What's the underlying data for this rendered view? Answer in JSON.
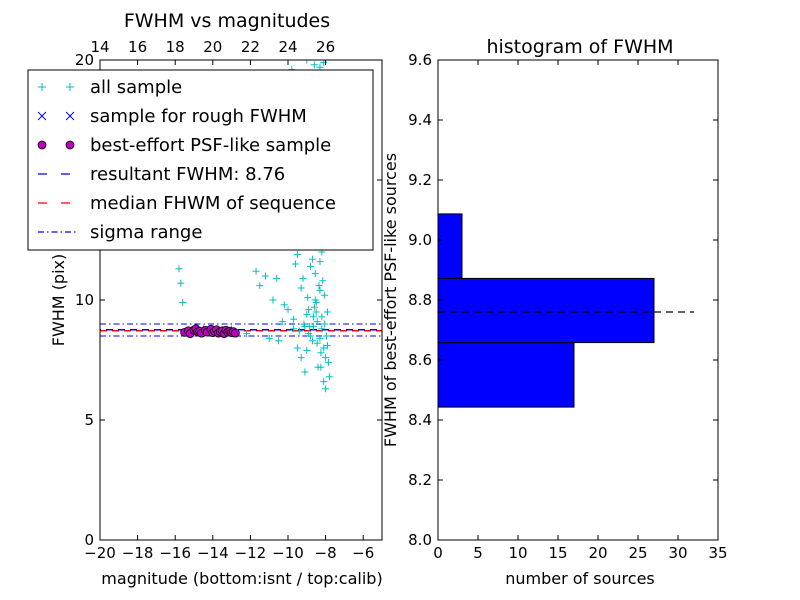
{
  "chart_data": [
    {
      "type": "scatter",
      "title": "FWHM vs magnitudes",
      "xlabel": "magnitude (bottom:isnt / top:calib)",
      "ylabel": "FWHM (pix)",
      "xlim": [
        -20,
        -5
      ],
      "ylim": [
        0,
        20
      ],
      "x_ticks": [
        -20,
        -18,
        -16,
        -14,
        -12,
        -10,
        -8,
        -6
      ],
      "x_tick_labels": [
        "−20",
        "−18",
        "−16",
        "−14",
        "−12",
        "−10",
        "−8",
        "−6"
      ],
      "y_ticks": [
        0,
        5,
        10,
        15,
        20
      ],
      "y_tick_labels": [
        "0",
        "5",
        "10",
        "15",
        "20"
      ],
      "top_x_ticks": [
        14,
        16,
        18,
        20,
        22,
        24,
        26
      ],
      "top_x_tick_labels": [
        "14",
        "16",
        "18",
        "20",
        "22",
        "24",
        "26"
      ],
      "top_x_offset": 34,
      "legend_position": "upper-left",
      "legend": [
        {
          "label": "all sample",
          "marker": "plus",
          "color": "#00bfbf"
        },
        {
          "label": "sample for rough FWHM",
          "marker": "cross",
          "color": "#0000ff"
        },
        {
          "label": "best-effort PSF-like sample",
          "marker": "circle",
          "color": "#bf00bf"
        },
        {
          "label": "resultant FWHM: 8.76",
          "line": "dashed",
          "color": "#0000ff"
        },
        {
          "label": "median FHWM of sequence",
          "line": "dashed",
          "color": "#ff0000"
        },
        {
          "label": "sigma range",
          "line": "dashdot",
          "color": "#0000ff"
        }
      ],
      "resultant_fwhm": 8.76,
      "median_fwhm": 8.72,
      "sigma_range": [
        8.5,
        9.0
      ],
      "series": [
        {
          "name": "all sample",
          "marker": "plus",
          "color": "#00bfbf",
          "x": [
            -15.8,
            -15.7,
            -15.6,
            -14.5,
            -14.2,
            -13.0,
            -12.2,
            -11.7,
            -11.5,
            -11.2,
            -10.8,
            -10.5,
            -10.3,
            -10.0,
            -9.9,
            -9.7,
            -9.5,
            -9.3,
            -9.2,
            -9.0,
            -8.9,
            -8.8,
            -8.7,
            -8.6,
            -8.5,
            -8.4,
            -8.3,
            -8.2,
            -8.1,
            -8.0,
            -7.9,
            -7.8,
            -9.6,
            -9.4,
            -9.1,
            -8.95,
            -8.85,
            -8.75,
            -8.65,
            -8.55,
            -8.45,
            -8.35,
            -8.25,
            -8.15,
            -8.05,
            -7.95,
            -7.85,
            -9.8,
            -9.0,
            -8.6,
            -8.3,
            -8.1,
            -8.4,
            -8.2,
            -8.0,
            -9.2,
            -8.8,
            -8.5,
            -8.0,
            -8.7,
            -9.5,
            -9.3,
            -9.7,
            -10.2,
            -10.6,
            -11.0,
            -9.15,
            -8.9,
            -8.2,
            -8.6,
            -8.3,
            -8.05,
            -7.9,
            -9.4,
            -9.0,
            -8.7,
            -8.5,
            -8.25,
            -8.1,
            -8.0,
            -8.45,
            -8.15,
            -8.35,
            -9.1,
            -8.8,
            -8.55,
            -8.9,
            -8.3,
            -8.65,
            -8.2
          ],
          "y": [
            11.3,
            10.7,
            9.9,
            8.8,
            8.7,
            8.8,
            8.6,
            11.2,
            10.6,
            11.0,
            10.0,
            8.3,
            9.1,
            9.6,
            12.3,
            8.8,
            8.0,
            7.6,
            10.9,
            9.4,
            12.8,
            8.5,
            11.7,
            13.5,
            9.9,
            7.2,
            10.4,
            12.0,
            8.0,
            7.6,
            9.5,
            6.8,
            11.5,
            13.8,
            7.0,
            10.1,
            8.9,
            12.6,
            9.3,
            11.1,
            8.2,
            13.0,
            7.8,
            10.8,
            9.0,
            8.5,
            7.4,
            19.6,
            20.0,
            19.8,
            19.7,
            19.9,
            14.9,
            15.2,
            14.8,
            13.4,
            14.3,
            12.2,
            12.9,
            16.0,
            11.9,
            10.5,
            9.2,
            9.8,
            10.9,
            8.4,
            9.0,
            8.6,
            8.8,
            9.7,
            11.6,
            10.2,
            8.1,
            8.7,
            7.9,
            8.3,
            9.5,
            7.2,
            6.6,
            6.3,
            9.1,
            12.4,
            10.6,
            8.9,
            11.4,
            10.0,
            9.6,
            8.4,
            8.9,
            9.3
          ]
        },
        {
          "name": "best-effort PSF-like sample",
          "marker": "circle",
          "color": "#bf00bf",
          "x": [
            -15.5,
            -15.3,
            -15.2,
            -15.0,
            -14.9,
            -14.8,
            -14.7,
            -14.6,
            -14.4,
            -14.3,
            -14.1,
            -14.0,
            -13.9,
            -13.8,
            -13.7,
            -13.6,
            -13.5,
            -13.4,
            -13.3,
            -13.2,
            -13.1,
            -13.0,
            -12.9,
            -12.8
          ],
          "y": [
            8.65,
            8.72,
            8.6,
            8.75,
            8.8,
            8.68,
            8.7,
            8.62,
            8.74,
            8.66,
            8.78,
            8.64,
            8.7,
            8.76,
            8.62,
            8.68,
            8.72,
            8.6,
            8.74,
            8.66,
            8.7,
            8.64,
            8.68,
            8.62
          ]
        }
      ]
    },
    {
      "type": "bar",
      "orientation": "horizontal",
      "title": "histogram of FWHM",
      "xlabel": "number of sources",
      "ylabel": "FWHM of best-effort PSF-like sources",
      "xlim": [
        0,
        35
      ],
      "ylim": [
        8.0,
        9.6
      ],
      "x_ticks": [
        0,
        5,
        10,
        15,
        20,
        25,
        30,
        35
      ],
      "x_tick_labels": [
        "0",
        "5",
        "10",
        "15",
        "20",
        "25",
        "30",
        "35"
      ],
      "y_ticks": [
        8.0,
        8.2,
        8.4,
        8.6,
        8.8,
        9.0,
        9.2,
        9.4,
        9.6
      ],
      "y_tick_labels": [
        "8.0",
        "8.2",
        "8.4",
        "8.6",
        "8.8",
        "9.0",
        "9.2",
        "9.4",
        "9.6"
      ],
      "bins": [
        {
          "low": 8.443,
          "high": 8.658,
          "count": 17
        },
        {
          "low": 8.658,
          "high": 8.872,
          "count": 27
        },
        {
          "low": 8.872,
          "high": 9.087,
          "count": 3
        }
      ],
      "bar_color": "#0000ff",
      "reference_line": {
        "value": 8.76,
        "style": "dashed",
        "color": "#000000",
        "x_end": 32
      }
    }
  ]
}
